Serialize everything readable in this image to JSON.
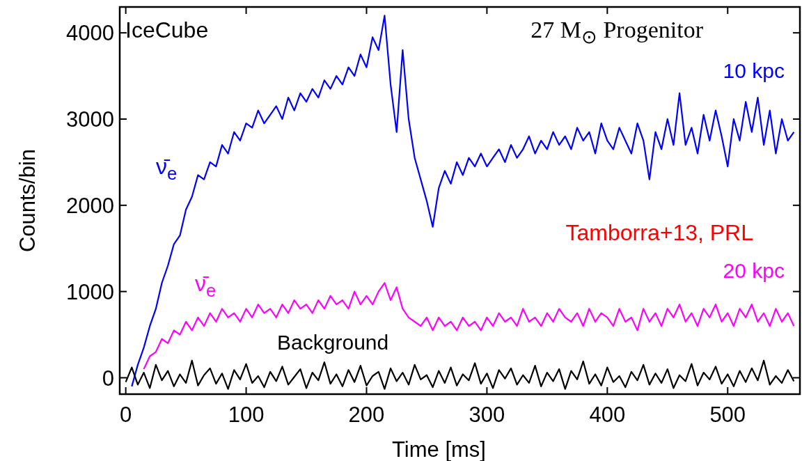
{
  "chart_data": {
    "type": "line",
    "xlabel": "Time [ms]",
    "ylabel": "Counts/bin",
    "xlim": [
      -5,
      560
    ],
    "ylim": [
      -190,
      4300
    ],
    "xticks": [
      0,
      100,
      200,
      300,
      400,
      500
    ],
    "yticks": [
      0,
      1000,
      2000,
      3000,
      4000
    ],
    "grid": false,
    "legend": "right",
    "x": [
      0,
      5,
      10,
      15,
      20,
      25,
      30,
      35,
      40,
      45,
      50,
      55,
      60,
      65,
      70,
      75,
      80,
      85,
      90,
      95,
      100,
      105,
      110,
      115,
      120,
      125,
      130,
      135,
      140,
      145,
      150,
      155,
      160,
      165,
      170,
      175,
      180,
      185,
      190,
      195,
      200,
      205,
      210,
      215,
      220,
      225,
      230,
      235,
      240,
      245,
      250,
      255,
      260,
      265,
      270,
      275,
      280,
      285,
      290,
      295,
      300,
      305,
      310,
      315,
      320,
      325,
      330,
      335,
      340,
      345,
      350,
      355,
      360,
      365,
      370,
      375,
      380,
      385,
      390,
      395,
      400,
      405,
      410,
      415,
      420,
      425,
      430,
      435,
      440,
      445,
      450,
      455,
      460,
      465,
      470,
      475,
      480,
      485,
      490,
      495,
      500,
      505,
      510,
      515,
      520,
      525,
      530,
      535,
      540,
      545,
      550,
      555
    ],
    "series": [
      {
        "name": "10 kpc",
        "color": "#0000ff",
        "values": [
          null,
          -100,
          150,
          350,
          600,
          800,
          1100,
          1300,
          1550,
          1650,
          1950,
          2100,
          2350,
          2300,
          2500,
          2450,
          2700,
          2600,
          2850,
          2750,
          2950,
          2900,
          3100,
          2950,
          3050,
          3150,
          3000,
          3250,
          3100,
          3300,
          3200,
          3350,
          3250,
          3450,
          3350,
          3500,
          3400,
          3600,
          3500,
          3750,
          3600,
          3950,
          3800,
          4200,
          3400,
          2850,
          3800,
          3000,
          2550,
          2300,
          2050,
          1750,
          2200,
          2400,
          2250,
          2500,
          2350,
          2550,
          2450,
          2600,
          2450,
          2550,
          2650,
          2500,
          2700,
          2550,
          2650,
          2800,
          2600,
          2750,
          2650,
          2850,
          2700,
          2800,
          2650,
          2900,
          2750,
          2850,
          2600,
          2950,
          2750,
          2650,
          2900,
          2750,
          2600,
          2950,
          2750,
          2300,
          2850,
          2650,
          3000,
          2700,
          3300,
          2700,
          2900,
          2600,
          3050,
          2750,
          3100,
          2800,
          2450,
          3000,
          2750,
          3200,
          2850,
          3250,
          2700,
          3100,
          2600,
          3000,
          2750,
          2850
        ]
      },
      {
        "name": "20 kpc",
        "color": "#ff00ff",
        "values": [
          null,
          null,
          null,
          100,
          250,
          300,
          450,
          400,
          550,
          500,
          650,
          550,
          700,
          600,
          750,
          650,
          800,
          700,
          750,
          650,
          800,
          700,
          850,
          750,
          800,
          700,
          850,
          750,
          900,
          800,
          850,
          750,
          900,
          800,
          950,
          850,
          900,
          800,
          1000,
          850,
          950,
          850,
          1000,
          1100,
          900,
          1050,
          800,
          700,
          650,
          600,
          700,
          550,
          700,
          600,
          650,
          550,
          700,
          600,
          650,
          550,
          700,
          600,
          750,
          650,
          700,
          600,
          800,
          650,
          700,
          600,
          750,
          650,
          800,
          700,
          650,
          750,
          600,
          800,
          650,
          750,
          700,
          600,
          800,
          650,
          700,
          550,
          800,
          650,
          750,
          600,
          800,
          700,
          850,
          650,
          750,
          600,
          800,
          700,
          850,
          650,
          750,
          600,
          800,
          700,
          850,
          650,
          750,
          600,
          800,
          650,
          750,
          600
        ]
      },
      {
        "name": "Background",
        "color": "#000000",
        "values": [
          -50,
          120,
          -80,
          60,
          -120,
          150,
          -30,
          80,
          -100,
          40,
          -60,
          200,
          -90,
          30,
          110,
          -70,
          50,
          -130,
          90,
          -20,
          160,
          -60,
          20,
          -110,
          70,
          -40,
          130,
          -80,
          10,
          100,
          -120,
          60,
          -30,
          180,
          -70,
          40,
          -100,
          90,
          -50,
          140,
          -90,
          20,
          70,
          -130,
          110,
          -40,
          60,
          -80,
          150,
          -20,
          30,
          -110,
          80,
          -60,
          120,
          -90,
          40,
          -30,
          170,
          -70,
          50,
          -120,
          90,
          -10,
          110,
          -80,
          30,
          -60,
          140,
          -100,
          60,
          -40,
          100,
          -130,
          80,
          -20,
          190,
          -70,
          40,
          -90,
          120,
          -50,
          20,
          -110,
          70,
          -30,
          150,
          -80,
          50,
          -60,
          100,
          -120,
          30,
          -40,
          160,
          -90,
          60,
          -20,
          130,
          -70,
          40,
          -100,
          80,
          -50,
          110,
          -30,
          200,
          -80,
          20,
          -60,
          90,
          -40
        ]
      }
    ],
    "annotations": [
      "IceCube",
      "27 M$_{⊙}$ Progenitor",
      "Tamborra+13, PRL",
      "ν̄$_{e}$",
      "ν̄$_{e}$"
    ]
  }
}
